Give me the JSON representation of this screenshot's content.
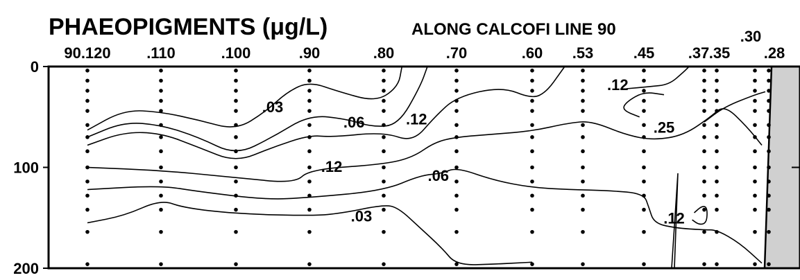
{
  "chart_data": {
    "type": "contour",
    "title": "PHAEOPIGMENTS (μg/L)",
    "subtitle": "ALONG CALCOFI LINE 90",
    "stations": [
      {
        "label": "90.120",
        "x": 0
      },
      {
        "label": ".110",
        "x": 1
      },
      {
        "label": ".100",
        "x": 2
      },
      {
        "label": ".90",
        "x": 3
      },
      {
        "label": ".80",
        "x": 4
      },
      {
        "label": ".70",
        "x": 5
      },
      {
        "label": ".60",
        "x": 6
      },
      {
        "label": ".53",
        "x": 6.7
      },
      {
        "label": ".45",
        "x": 7.4
      },
      {
        "label": ".37",
        "x": 8
      },
      {
        "label": ".35",
        "x": 8.2
      },
      {
        "label": ".30",
        "x": 8.7
      },
      {
        "label": ".28",
        "x": 8.9
      }
    ],
    "y_ticks": [
      "0",
      "100",
      "200"
    ],
    "ylim": [
      0,
      200
    ],
    "y_inverted": true,
    "contour_levels": [
      ".03",
      ".06",
      ".12",
      ".25"
    ],
    "contour_labels": [
      {
        "text": ".03",
        "x": 2.5,
        "y": 40
      },
      {
        "text": ".06",
        "x": 3.6,
        "y": 55
      },
      {
        "text": ".12",
        "x": 4.45,
        "y": 52
      },
      {
        "text": ".12",
        "x": 7.1,
        "y": 18
      },
      {
        "text": ".25",
        "x": 7.6,
        "y": 60
      },
      {
        "text": ".12",
        "x": 3.3,
        "y": 99
      },
      {
        "text": ".06",
        "x": 4.75,
        "y": 108
      },
      {
        "text": ".03",
        "x": 3.7,
        "y": 148
      },
      {
        "text": ".12",
        "x": 7.7,
        "y": 150
      }
    ],
    "contours": [
      {
        "level": ".03",
        "points": [
          [
            0,
            63
          ],
          [
            0.5,
            43
          ],
          [
            1,
            45
          ],
          [
            1.5,
            53
          ],
          [
            2,
            63
          ],
          [
            2.4,
            45
          ],
          [
            2.7,
            25
          ],
          [
            3,
            15
          ],
          [
            3.4,
            25
          ],
          [
            3.9,
            35
          ],
          [
            4.2,
            20
          ],
          [
            4.25,
            0
          ]
        ]
      },
      {
        "level": ".06",
        "points": [
          [
            0,
            70
          ],
          [
            0.5,
            55
          ],
          [
            1,
            58
          ],
          [
            1.5,
            70
          ],
          [
            2,
            88
          ],
          [
            2.5,
            70
          ],
          [
            3,
            48
          ],
          [
            3.5,
            52
          ],
          [
            3.85,
            60
          ],
          [
            4.2,
            58
          ],
          [
            4.5,
            20
          ],
          [
            4.6,
            0
          ]
        ]
      },
      {
        "level": ".12",
        "points": [
          [
            0,
            78
          ],
          [
            0.5,
            65
          ],
          [
            1,
            66
          ],
          [
            1.5,
            80
          ],
          [
            2,
            95
          ],
          [
            2.5,
            80
          ],
          [
            3,
            68
          ],
          [
            3.3,
            70
          ],
          [
            4,
            65
          ],
          [
            4.4,
            75
          ],
          [
            4.7,
            50
          ],
          [
            5,
            30
          ],
          [
            5.6,
            20
          ],
          [
            6,
            32
          ],
          [
            6.2,
            25
          ],
          [
            6.4,
            5
          ],
          [
            6.45,
            0
          ]
        ]
      },
      {
        "level": ".12",
        "points": [
          [
            7.2,
            22
          ],
          [
            7.45,
            20
          ],
          [
            7.65,
            18
          ],
          [
            7.8,
            5
          ],
          [
            7.85,
            0
          ]
        ]
      },
      {
        "level": ".25",
        "points": [
          [
            7.6,
            28
          ],
          [
            7.4,
            25
          ],
          [
            7.2,
            35
          ],
          [
            7.15,
            43
          ],
          [
            7.35,
            50
          ]
        ]
      },
      {
        "level": ".25",
        "points": [
          [
            8,
            55
          ],
          [
            8.3,
            40
          ],
          [
            8.7,
            28
          ],
          [
            8.85,
            25
          ]
        ]
      },
      {
        "level": ".12",
        "points": [
          [
            0,
            100
          ],
          [
            1,
            103
          ],
          [
            2,
            110
          ],
          [
            2.8,
            116
          ],
          [
            3,
            102
          ],
          [
            4,
            97
          ],
          [
            4.4,
            90
          ],
          [
            4.7,
            75
          ],
          [
            5,
            70
          ],
          [
            5.5,
            67
          ],
          [
            6,
            64
          ],
          [
            6.5,
            56
          ],
          [
            6.8,
            54
          ],
          [
            7.2,
            68
          ],
          [
            7.5,
            73
          ],
          [
            7.8,
            68
          ],
          [
            8.1,
            50
          ],
          [
            8.3,
            38
          ],
          [
            8.6,
            60
          ],
          [
            8.8,
            78
          ]
        ]
      },
      {
        "level": ".06",
        "points": [
          [
            0,
            122
          ],
          [
            1,
            118
          ],
          [
            1.5,
            124
          ],
          [
            2.4,
            132
          ],
          [
            3,
            130
          ],
          [
            4,
            123
          ],
          [
            4.5,
            108
          ],
          [
            4.8,
            106
          ],
          [
            5,
            100
          ],
          [
            5.5,
            113
          ],
          [
            6,
            120
          ],
          [
            6.5,
            122
          ],
          [
            7,
            123
          ],
          [
            7.4,
            126
          ],
          [
            7.45,
            140
          ],
          [
            7.5,
            155
          ],
          [
            7.7,
            160
          ],
          [
            8,
            162
          ],
          [
            8.2,
            162
          ],
          [
            8.5,
            175
          ],
          [
            8.8,
            195
          ]
        ]
      },
      {
        "level": ".03",
        "points": [
          [
            0,
            155
          ],
          [
            0.5,
            148
          ],
          [
            1,
            132
          ],
          [
            1.3,
            140
          ],
          [
            2,
            146
          ],
          [
            3,
            148
          ],
          [
            3.4,
            146
          ],
          [
            4,
            137
          ],
          [
            4.2,
            140
          ],
          [
            4.5,
            160
          ],
          [
            4.8,
            180
          ],
          [
            5,
            197
          ],
          [
            5.5,
            196
          ],
          [
            6,
            194
          ]
        ]
      },
      {
        "level": ".12",
        "points": [
          [
            7.9,
            145
          ],
          [
            7.98,
            138
          ],
          [
            8.05,
            140
          ],
          [
            8.04,
            155
          ],
          [
            7.95,
            157
          ],
          [
            7.88,
            152
          ]
        ]
      }
    ],
    "land_label": "",
    "annotations": []
  }
}
